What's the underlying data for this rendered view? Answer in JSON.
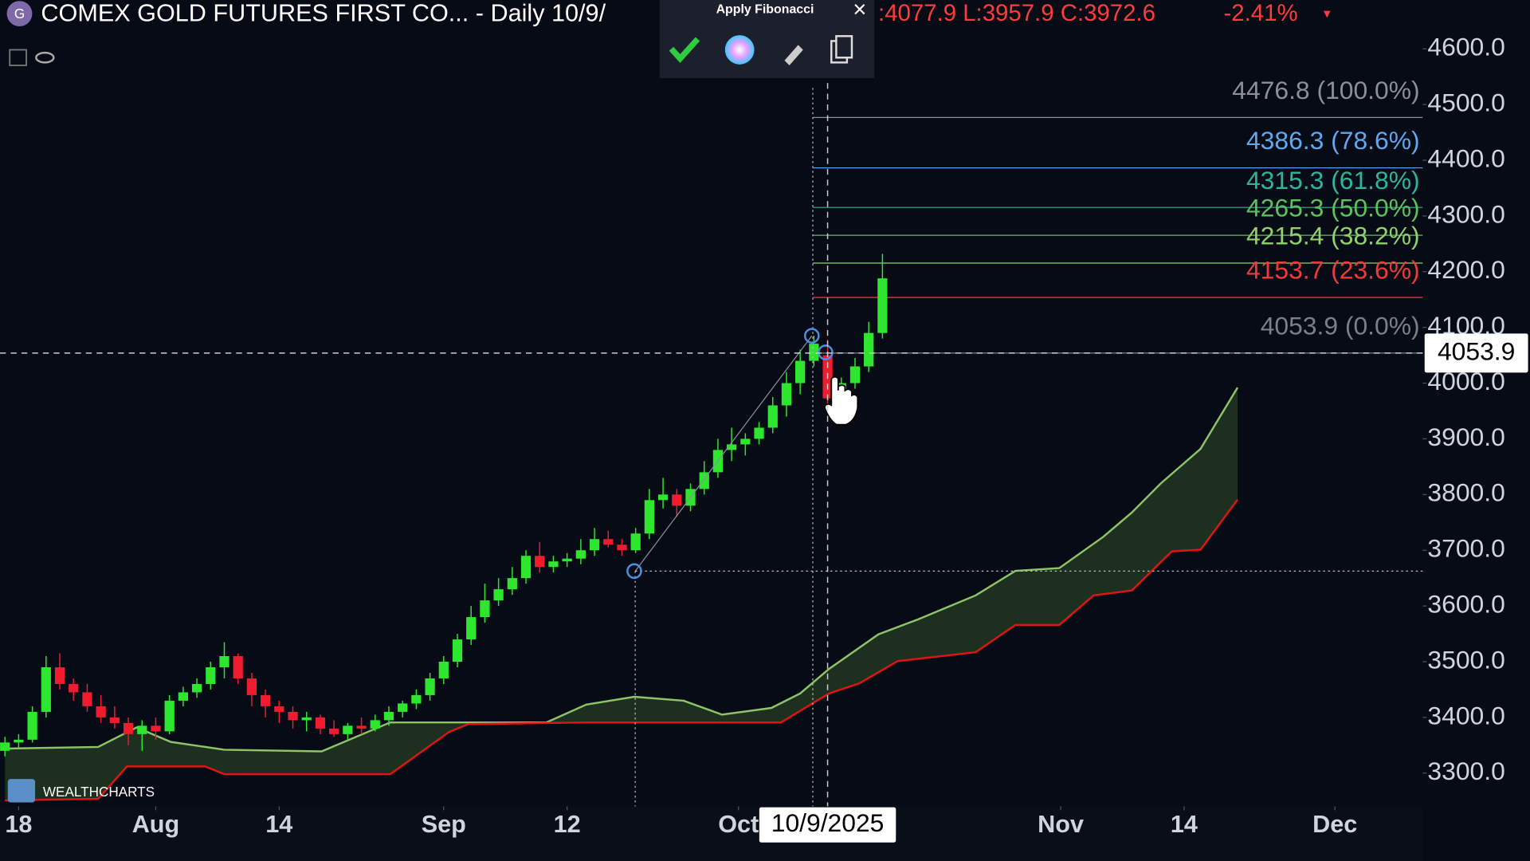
{
  "header": {
    "symbol_badge": "G",
    "title": "COMEX GOLD FUTURES FIRST CO... - Daily 10/9/",
    "ohlc": ":4077.9 L:3957.9 C:3972.6",
    "change": "-2.41%",
    "change_arrow": "▼"
  },
  "toolbar": {
    "title": "Apply Fibonacci",
    "close": "×"
  },
  "watermark": "WEALTHCHARTS",
  "chart_data": {
    "type": "candlestick",
    "xlim": [
      -0.36,
      103.4
    ],
    "ylim": [
      3240.4,
      4687.6
    ],
    "xticks": [
      {
        "value": 1,
        "label": "18"
      },
      {
        "value": 11,
        "label": "Aug"
      },
      {
        "value": 20,
        "label": "14"
      },
      {
        "value": 32,
        "label": "Sep"
      },
      {
        "value": 41,
        "label": "12"
      },
      {
        "value": 53.5,
        "label": "Oct"
      },
      {
        "value": 77,
        "label": "Nov"
      },
      {
        "value": 86,
        "label": "14"
      },
      {
        "value": 97,
        "label": "Dec"
      }
    ],
    "yticks": [
      {
        "value": 3300,
        "label": "3300.0"
      },
      {
        "value": 3400,
        "label": "3400.0"
      },
      {
        "value": 3500,
        "label": "3500.0"
      },
      {
        "value": 3600,
        "label": "3600.0"
      },
      {
        "value": 3700,
        "label": "3700.0"
      },
      {
        "value": 3800,
        "label": "3800.0"
      },
      {
        "value": 3900,
        "label": "3900.0"
      },
      {
        "value": 4000,
        "label": "4000.0"
      },
      {
        "value": 4100,
        "label": "4100.0"
      },
      {
        "value": 4200,
        "label": "4200.0"
      },
      {
        "value": 4300,
        "label": "4300.0"
      },
      {
        "value": 4400,
        "label": "4400.0"
      },
      {
        "value": 4500,
        "label": "4500.0"
      },
      {
        "value": 4600,
        "label": "4600.0"
      }
    ],
    "up_color": "#2ee62e",
    "down_color": "#ee1c2e",
    "open": [
      3340,
      3355,
      3360,
      3410,
      3490,
      3460,
      3445,
      3420,
      3400,
      3390,
      3370,
      3385,
      3375,
      3430,
      3445,
      3460,
      3490,
      3510,
      3470,
      3440,
      3420,
      3410,
      3395,
      3400,
      3380,
      3370,
      3385,
      3380,
      3395,
      3410,
      3425,
      3440,
      3470,
      3500,
      3540,
      3580,
      3610,
      3630,
      3650,
      3690,
      3670,
      3680,
      3685,
      3700,
      3720,
      3710,
      3700,
      3730,
      3790,
      3800,
      3780,
      3810,
      3840,
      3880,
      3890,
      3900,
      3920,
      3960,
      4000,
      4040,
      4050,
      3972.6,
      4000,
      4030,
      4090
    ],
    "high": [
      3365,
      3370,
      3420,
      3510,
      3515,
      3470,
      3460,
      3440,
      3420,
      3400,
      3395,
      3400,
      3440,
      3455,
      3470,
      3500,
      3535,
      3515,
      3480,
      3450,
      3430,
      3420,
      3410,
      3405,
      3395,
      3390,
      3400,
      3405,
      3420,
      3430,
      3450,
      3480,
      3510,
      3550,
      3600,
      3640,
      3650,
      3670,
      3700,
      3715,
      3690,
      3695,
      3720,
      3740,
      3735,
      3720,
      3740,
      3810,
      3830,
      3810,
      3820,
      3860,
      3900,
      3920,
      3910,
      3930,
      3975,
      4020,
      4060,
      4085,
      4077.9,
      4010,
      4045,
      4110,
      4232
    ],
    "low": [
      3330,
      3345,
      3355,
      3400,
      3450,
      3430,
      3410,
      3390,
      3380,
      3350,
      3340,
      3360,
      3370,
      3420,
      3435,
      3450,
      3470,
      3460,
      3420,
      3400,
      3390,
      3380,
      3375,
      3370,
      3365,
      3360,
      3370,
      3375,
      3385,
      3400,
      3415,
      3430,
      3460,
      3490,
      3530,
      3570,
      3600,
      3620,
      3640,
      3660,
      3660,
      3670,
      3675,
      3690,
      3705,
      3690,
      3695,
      3720,
      3775,
      3760,
      3770,
      3800,
      3830,
      3860,
      3870,
      3890,
      3910,
      3940,
      3980,
      4030,
      3957.9,
      3960,
      3990,
      4020,
      4080
    ],
    "close": [
      3355,
      3360,
      3410,
      3490,
      3460,
      3445,
      3420,
      3400,
      3390,
      3370,
      3385,
      3375,
      3430,
      3445,
      3460,
      3490,
      3510,
      3470,
      3440,
      3420,
      3410,
      3395,
      3400,
      3380,
      3370,
      3385,
      3380,
      3395,
      3410,
      3425,
      3440,
      3470,
      3500,
      3540,
      3580,
      3610,
      3630,
      3650,
      3690,
      3670,
      3680,
      3685,
      3700,
      3720,
      3710,
      3700,
      3730,
      3790,
      3800,
      3780,
      3810,
      3840,
      3880,
      3890,
      3900,
      3920,
      3960,
      4000,
      4040,
      4070.7,
      3972.6,
      4000,
      4030,
      4090,
      4188
    ],
    "series": [
      {
        "color": "#8fc36a",
        "x": [
          0,
          6.8,
          9.6,
          12.1,
          16,
          23.1,
          28.1,
          39.5,
          42.4,
          45.9,
          49.5,
          52.3,
          55.9,
          58,
          60.1,
          63.7,
          66.5,
          70.8,
          73.7,
          76.9,
          80.1,
          82.2,
          84.3,
          87.2,
          89.9
        ],
        "values": [
          3344,
          3347,
          3382,
          3356,
          3342,
          3339,
          3391,
          3391,
          3423,
          3437,
          3430,
          3405,
          3417,
          3443,
          3487,
          3549,
          3575,
          3619,
          3663,
          3668,
          3724,
          3768,
          3820,
          3882,
          3992
        ]
      },
      {
        "color": "#e01414",
        "x": [
          0,
          6.8,
          8.9,
          14.6,
          16,
          28.1,
          32.4,
          33.8,
          42.4,
          56.6,
          60.1,
          62.3,
          65.1,
          70.8,
          73.7,
          76.9,
          79.4,
          82.2,
          85.1,
          87.2,
          89.9
        ],
        "values": [
          3251,
          3254,
          3312,
          3312,
          3298,
          3298,
          3374,
          3388,
          3391,
          3391,
          3443,
          3461,
          3501,
          3517,
          3566,
          3566,
          3619,
          3628,
          3698,
          3701,
          3791
        ]
      }
    ],
    "fibonacci": [
      {
        "value": 4476.8,
        "label": "4476.8 (100.0%)",
        "color": "#8a8f99"
      },
      {
        "value": 4386.3,
        "label": "4386.3 (78.6%)",
        "color": "#5fa8f0"
      },
      {
        "value": 4315.3,
        "label": "4315.3 (61.8%)",
        "color": "#2bb59a"
      },
      {
        "value": 4265.3,
        "label": "4265.3 (50.0%)",
        "color": "#5cc15c"
      },
      {
        "value": 4215.4,
        "label": "4215.4 (38.2%)",
        "color": "#8fd16a"
      },
      {
        "value": 4153.7,
        "label": "4153.7 (23.6%)",
        "color": "#f03a3a"
      },
      {
        "value": 4053.9,
        "label": "4053.9 (0.0%)",
        "color": "#7a7f88"
      }
    ],
    "crosshair": {
      "x": 60,
      "x_label": "10/9/2025",
      "y": 4053.9
    }
  }
}
